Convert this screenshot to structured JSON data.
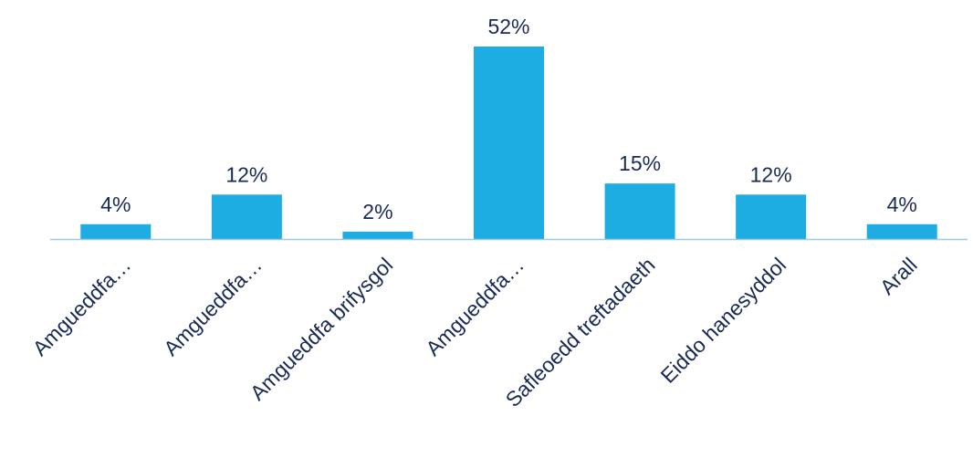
{
  "chart_data": {
    "type": "bar",
    "categories": [
      "Amgueddfa…",
      "Amgueddfa…",
      "Amgueddfa brifysgol",
      "Amgueddfa…",
      "Safleoedd treftadaeth",
      "Eiddo hanesyddol",
      "Arall"
    ],
    "values": [
      4,
      12,
      2,
      52,
      15,
      12,
      4
    ],
    "value_suffix": "%",
    "ylim": [
      0,
      52
    ],
    "grid": false,
    "legend": "none",
    "colors": {
      "bar": "#1EADE3",
      "axis": "#9CC8E0",
      "text": "#1A2A57"
    }
  }
}
